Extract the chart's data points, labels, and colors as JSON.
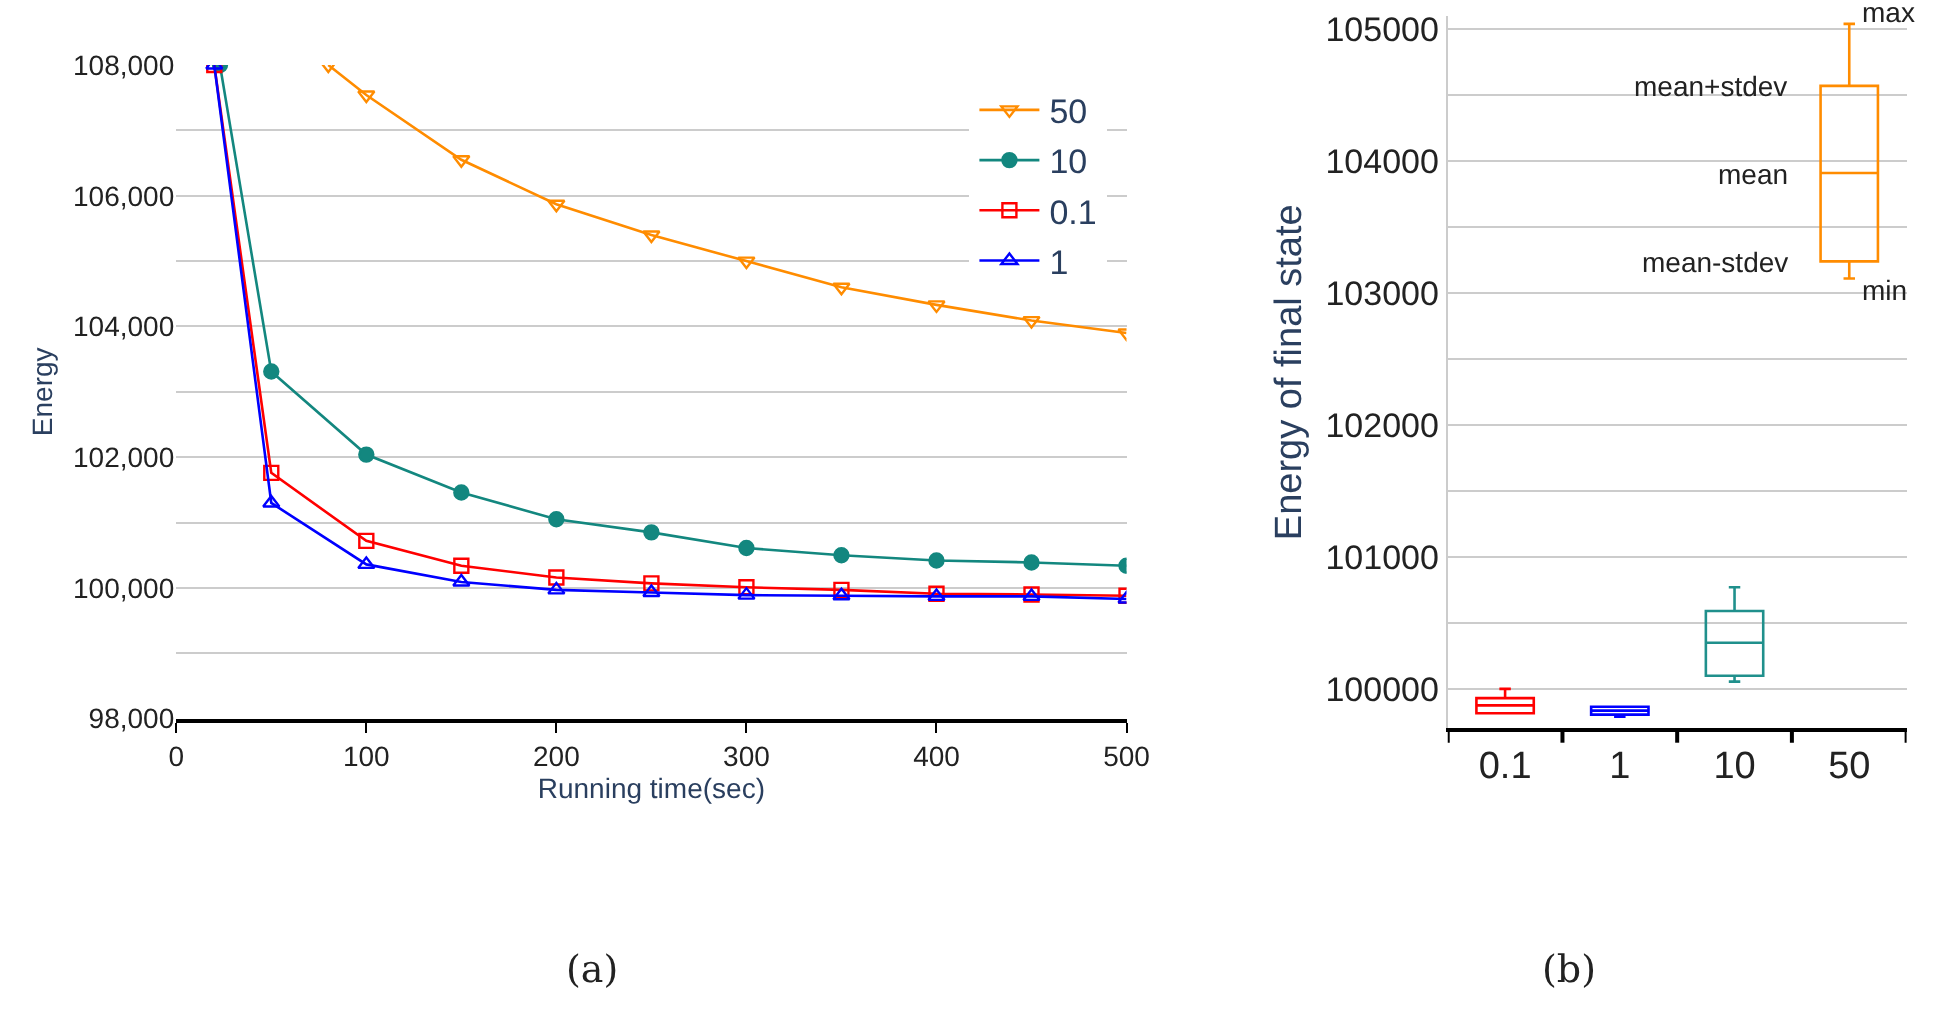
{
  "chart_data": [
    {
      "type": "line",
      "xlabel": "Running time(sec)",
      "ylabel": "Energy",
      "annotations": [
        "(a)"
      ],
      "legend": "top right",
      "grid": "y",
      "line_style": "solid",
      "xlim": [
        0,
        500
      ],
      "xticks": [
        0,
        100,
        200,
        300,
        400,
        500
      ],
      "ylim": [
        98000,
        108000
      ],
      "yticks": [
        {
          "value": 98000,
          "label": "98,000"
        },
        {
          "value": 99000,
          "label": null
        },
        {
          "value": 100000,
          "label": "100,000"
        },
        {
          "value": 101000,
          "label": null
        },
        {
          "value": 102000,
          "label": "102,000"
        },
        {
          "value": 103000,
          "label": null
        },
        {
          "value": 104000,
          "label": "104,000"
        },
        {
          "value": 105000,
          "label": null
        },
        {
          "value": 106000,
          "label": "106,000"
        },
        {
          "value": 107000,
          "label": null
        },
        {
          "value": 108000,
          "label": "108,000"
        }
      ],
      "series": [
        {
          "name": "50",
          "color": "#ff8c00",
          "marker": "triangle-down",
          "x": [
            80,
            100,
            150,
            200,
            250,
            300,
            350,
            400,
            450,
            500
          ],
          "values": [
            108000,
            107540,
            106550,
            105870,
            105400,
            105000,
            104600,
            104330,
            104090,
            103900
          ]
        },
        {
          "name": "10",
          "color": "#13877f",
          "marker": "circle",
          "x": [
            23,
            50,
            100,
            150,
            200,
            250,
            300,
            350,
            400,
            450,
            500
          ],
          "values": [
            108000,
            103310,
            102040,
            101460,
            101050,
            100850,
            100610,
            100500,
            100420,
            100390,
            100340
          ]
        },
        {
          "name": "0.1",
          "color": "#ff0000",
          "marker": "square",
          "x": [
            20,
            50,
            100,
            150,
            200,
            250,
            300,
            350,
            400,
            450,
            500
          ],
          "values": [
            108000,
            101760,
            100720,
            100340,
            100160,
            100070,
            100010,
            99970,
            99910,
            99900,
            99880
          ]
        },
        {
          "name": "1",
          "color": "#0000ff",
          "marker": "triangle",
          "x": [
            20,
            50,
            100,
            150,
            200,
            250,
            300,
            350,
            400,
            450,
            500
          ],
          "values": [
            108000,
            101300,
            100360,
            100090,
            99970,
            99930,
            99890,
            99880,
            99870,
            99870,
            99830
          ]
        }
      ]
    },
    {
      "type": "box",
      "ylabel": "Energy of final state",
      "legend": false,
      "grid": "y",
      "categories": [
        "0.1",
        "1",
        "10",
        "50"
      ],
      "colors": [
        "#ff0000",
        "#0000ff",
        "#20908c",
        "#ff8c00"
      ],
      "ylim": [
        99700,
        105100
      ],
      "yticks": [
        100000,
        {
          "value": 100500,
          "label": null
        },
        101000,
        {
          "value": 101500,
          "label": null
        },
        102000,
        {
          "value": 102500,
          "label": null
        },
        103000,
        {
          "value": 103500,
          "label": null
        },
        104000,
        {
          "value": 104500,
          "label": null
        },
        105000
      ],
      "boxes": [
        {
          "low": 99815,
          "q1": 99815,
          "median": 99875,
          "q3": 99930,
          "high": 100000
        },
        {
          "low": 99790,
          "q1": 99805,
          "median": 99835,
          "q3": 99865,
          "high": 99865
        },
        {
          "low": 100055,
          "q1": 100100,
          "median": 100350,
          "q3": 100590,
          "high": 100770
        },
        {
          "low": 103110,
          "q1": 103240,
          "median": 103910,
          "q3": 104570,
          "high": 105040
        }
      ],
      "annotations": [
        {
          "text": "max",
          "x": "50",
          "y": 105040
        },
        {
          "text": "mean+stdev",
          "x": "50",
          "y": 104570
        },
        {
          "text": "mean",
          "x": "50",
          "y": 103910
        },
        {
          "text": "mean-stdev",
          "x": "50",
          "y": 103240
        },
        {
          "text": "min",
          "x": "50",
          "y": 103110
        },
        "(b)"
      ]
    }
  ]
}
